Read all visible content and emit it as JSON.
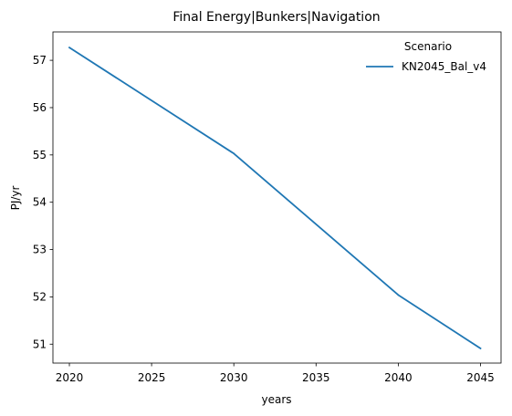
{
  "chart_data": {
    "type": "line",
    "title": "Final Energy|Bunkers|Navigation",
    "xlabel": "years",
    "ylabel": "PJ/yr",
    "x": [
      2020,
      2030,
      2040,
      2045
    ],
    "series": [
      {
        "name": "KN2045_Bal_v4",
        "color": "#1f77b4",
        "values": [
          57.27,
          55.03,
          52.04,
          50.91
        ]
      }
    ],
    "xlim": [
      2019.0,
      2046.25
    ],
    "ylim": [
      50.6,
      57.6
    ],
    "xticks": [
      2020,
      2025,
      2030,
      2035,
      2040,
      2045
    ],
    "yticks": [
      51,
      52,
      53,
      54,
      55,
      56,
      57
    ],
    "legend": {
      "title": "Scenario",
      "placement": "top-right"
    },
    "grid": false
  }
}
